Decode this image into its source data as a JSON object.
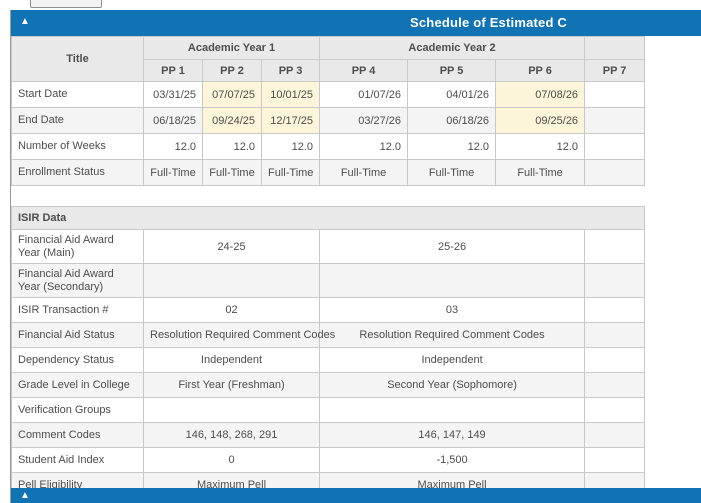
{
  "colors": {
    "accent_blue": "#1173b4",
    "highlight_yellow": "#fcf5da",
    "header_gray": "#e9e9e9",
    "alt_row": "#f4f4f4"
  },
  "panel": {
    "title": "Schedule of Estimated C",
    "collapse_icon": "▲"
  },
  "bottom_panel": {
    "collapse_icon": "▲"
  },
  "table": {
    "title_header": "Title",
    "year_groups": [
      {
        "label": "Academic Year 1",
        "periods": [
          "PP 1",
          "PP 2",
          "PP 3"
        ]
      },
      {
        "label": "Academic Year 2",
        "periods": [
          "PP 4",
          "PP 5",
          "PP 6"
        ]
      }
    ],
    "partial_period_label": "PP 7",
    "schedule_rows": [
      {
        "label": "Start Date",
        "align": "right",
        "highlight_cols": [
          2,
          3,
          6
        ],
        "values": [
          "03/31/25",
          "07/07/25",
          "10/01/25",
          "01/07/26",
          "04/01/26",
          "07/08/26"
        ]
      },
      {
        "label": "End Date",
        "align": "right",
        "highlight_cols": [
          2,
          3,
          6
        ],
        "values": [
          "06/18/25",
          "09/24/25",
          "12/17/25",
          "03/27/26",
          "06/18/26",
          "09/25/26"
        ]
      },
      {
        "label": "Number of Weeks",
        "align": "right",
        "highlight_cols": [],
        "values": [
          "12.0",
          "12.0",
          "12.0",
          "12.0",
          "12.0",
          "12.0"
        ]
      },
      {
        "label": "Enrollment Status",
        "align": "center",
        "highlight_cols": [],
        "values": [
          "Full-Time",
          "Full-Time",
          "Full-Time",
          "Full-Time",
          "Full-Time",
          "Full-Time"
        ]
      }
    ],
    "isir_section_label": "ISIR Data",
    "isir_rows": [
      {
        "label": "Financial Aid Award Year (Main)",
        "tall": true,
        "values": [
          "24-25",
          "25-26"
        ]
      },
      {
        "label": "Financial Aid Award Year (Secondary)",
        "tall": true,
        "values": [
          "",
          ""
        ]
      },
      {
        "label": "ISIR Transaction #",
        "tall": false,
        "values": [
          "02",
          "03"
        ]
      },
      {
        "label": "Financial Aid Status",
        "tall": false,
        "values": [
          "Resolution Required Comment Codes",
          "Resolution Required Comment Codes"
        ]
      },
      {
        "label": "Dependency Status",
        "tall": false,
        "values": [
          "Independent",
          "Independent"
        ]
      },
      {
        "label": "Grade Level in College",
        "tall": false,
        "values": [
          "First Year (Freshman)",
          "Second Year (Sophomore)"
        ]
      },
      {
        "label": "Verification Groups",
        "tall": false,
        "values": [
          "",
          ""
        ]
      },
      {
        "label": "Comment Codes",
        "tall": false,
        "values": [
          "146, 148, 268, 291",
          "146, 147, 149"
        ]
      },
      {
        "label": "Student Aid Index",
        "tall": false,
        "values": [
          "0",
          "-1,500"
        ]
      },
      {
        "label": "Pell Eligibility",
        "tall": false,
        "values": [
          "Maximum Pell",
          "Maximum Pell"
        ]
      }
    ]
  }
}
